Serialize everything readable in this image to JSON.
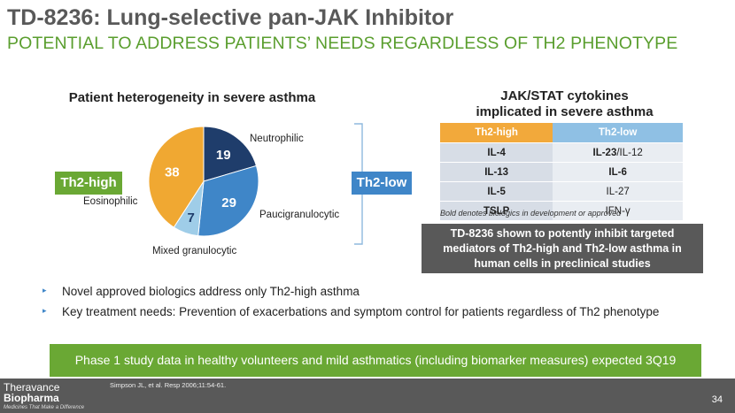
{
  "header": {
    "title": "TD-8236: Lung-selective pan-JAK Inhibitor",
    "subtitle": "POTENTIAL TO ADDRESS PATIENTS’ NEEDS REGARDLESS OF TH2 PHENOTYPE"
  },
  "pie": {
    "title": "Patient heterogeneity in severe asthma",
    "tag_th2_high": "Th2-high",
    "tag_th2_low": "Th2-low",
    "colors": {
      "neutrophilic": "#1f3d6b",
      "paucigranulocytic": "#3f86c8",
      "mixed": "#9fcde8",
      "eosinophilic": "#f0a832"
    }
  },
  "chart_data": {
    "type": "pie",
    "title": "Patient heterogeneity in severe asthma",
    "slices": [
      {
        "label": "Neutrophilic",
        "value": 19
      },
      {
        "label": "Paucigranulocytic",
        "value": 29
      },
      {
        "label": "Mixed granulocytic",
        "value": 7
      },
      {
        "label": "Eosinophilic",
        "value": 38
      }
    ]
  },
  "cytokines": {
    "title_line1": "JAK/STAT cytokines",
    "title_line2": "implicated in severe asthma",
    "headers": [
      "Th2-high",
      "Th2-low"
    ],
    "rows": [
      {
        "high": "IL-4",
        "low_bold": "IL-23",
        "low_rest": "/IL-12"
      },
      {
        "high": "IL-13",
        "low_bold": "IL-6",
        "low_rest": ""
      },
      {
        "high": "IL-5",
        "low_bold": "",
        "low_rest": "IL-27"
      },
      {
        "high": "TSLP",
        "low_bold": "",
        "low_rest": "IFN-γ"
      }
    ],
    "note": "Bold denotes biologics in development or approved"
  },
  "callout": {
    "line1": "TD-8236 shown to potently inhibit targeted",
    "line2": "mediators of Th2-high and Th2-low asthma in",
    "line3": "human cells in preclinical studies"
  },
  "bullets": [
    "Novel approved biologics address only Th2-high asthma",
    "Key treatment needs:  Prevention of exacerbations and symptom control for patients regardless of Th2 phenotype"
  ],
  "banner": "Phase 1 study data in healthy volunteers and mild asthmatics (including biomarker measures) expected 3Q19",
  "footer": {
    "logo_line1": "Theravance",
    "logo_line2": "Biopharma",
    "logo_tagline": "Medicines That Make a Difference",
    "citation": "Simpson JL, et al. Resp 2006;11:54-61.",
    "page_number": "34"
  }
}
